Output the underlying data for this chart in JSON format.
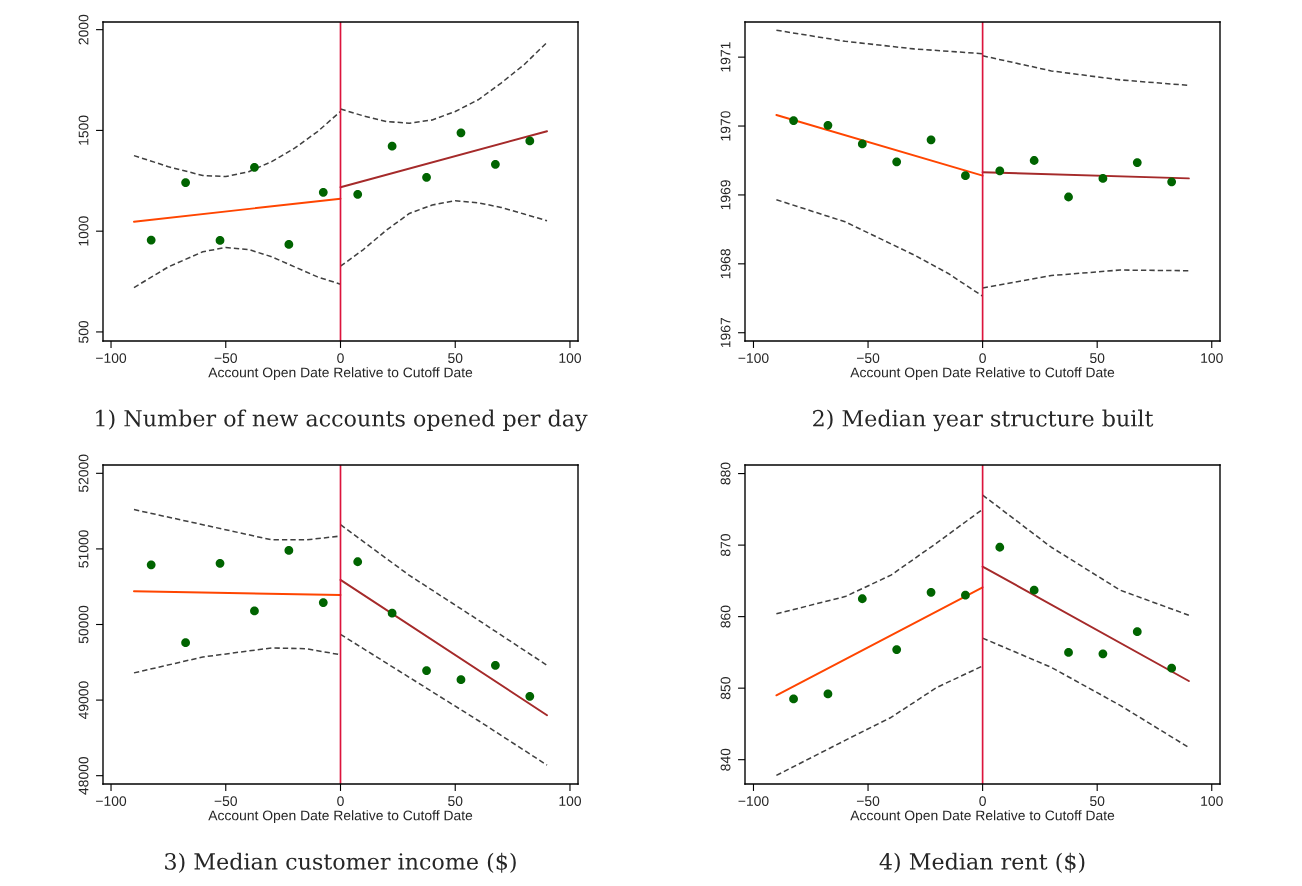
{
  "chart_data": [
    {
      "type": "scatter",
      "title": "1) Number of new accounts opened per day",
      "xlabel": "Account Open Date Relative to Cutoff Date",
      "xlim": [
        -103.5,
        103.5
      ],
      "xticks": [
        -100,
        -50,
        0,
        50,
        100
      ],
      "ylim": [
        455,
        2038
      ],
      "yticks": [
        500,
        1000,
        1500,
        2000
      ],
      "grid": false,
      "legend": false,
      "marker": "circle",
      "ref_lines": [
        {
          "axis": "x",
          "value": 0,
          "color": "#dc143c"
        }
      ],
      "series": [
        {
          "color": "#006400",
          "x": [
            -82.5,
            -67.5,
            -52.5,
            -37.5,
            -22.5,
            -7.5,
            7.5,
            22.5,
            37.5,
            52.5,
            67.5,
            82.5
          ],
          "values": [
            956,
            1241,
            954,
            1317,
            934,
            1193,
            1183,
            1422,
            1267,
            1488,
            1332,
            1448
          ]
        },
        {
          "type": "line",
          "color": "#ff4500",
          "line_style": "solid",
          "marker": "none",
          "x": [
            -90,
            0
          ],
          "values": [
            1047,
            1161
          ]
        },
        {
          "type": "line",
          "color": "#a52a2a",
          "line_style": "solid",
          "marker": "none",
          "x": [
            0,
            90
          ],
          "values": [
            1218,
            1496
          ]
        },
        {
          "type": "line",
          "color": "#404040",
          "line_style": "dashed",
          "marker": "none",
          "x": [
            -90,
            -75,
            -60,
            -50,
            -40,
            -30,
            -20,
            -10,
            0
          ],
          "values": [
            1375,
            1320,
            1276,
            1271,
            1295,
            1345,
            1412,
            1494,
            1594
          ]
        },
        {
          "type": "line",
          "color": "#404040",
          "line_style": "dashed",
          "marker": "none",
          "x": [
            -90,
            -75,
            -60,
            -50,
            -40,
            -30,
            -20,
            -10,
            0
          ],
          "values": [
            720,
            823,
            898,
            919,
            909,
            873,
            823,
            773,
            737
          ]
        },
        {
          "type": "line",
          "color": "#404040",
          "line_style": "dashed",
          "marker": "none",
          "x": [
            0,
            10,
            20,
            30,
            40,
            50,
            60,
            70,
            80,
            90
          ],
          "values": [
            1606,
            1572,
            1544,
            1536,
            1552,
            1594,
            1652,
            1735,
            1826,
            1937
          ]
        },
        {
          "type": "line",
          "color": "#404040",
          "line_style": "dashed",
          "marker": "none",
          "x": [
            0,
            10,
            20,
            30,
            40,
            50,
            60,
            70,
            80,
            90
          ],
          "values": [
            826,
            909,
            1005,
            1088,
            1130,
            1151,
            1141,
            1118,
            1085,
            1052
          ]
        }
      ]
    },
    {
      "type": "scatter",
      "title": "2) Median year structure built",
      "xlabel": "Account Open Date Relative to Cutoff Date",
      "xlim": [
        -103.7,
        103.6
      ],
      "xticks": [
        -100,
        -50,
        0,
        50,
        100
      ],
      "ylim": [
        1966.88,
        1971.51
      ],
      "yticks": [
        1967,
        1968,
        1969,
        1970,
        1971
      ],
      "grid": false,
      "legend": false,
      "marker": "circle",
      "ref_lines": [
        {
          "axis": "x",
          "value": 0,
          "color": "#dc143c"
        }
      ],
      "series": [
        {
          "color": "#006400",
          "x": [
            -82.5,
            -67.5,
            -52.5,
            -37.5,
            -22.5,
            -7.5,
            7.5,
            22.5,
            37.5,
            52.5,
            67.5,
            82.5
          ],
          "values": [
            1970.08,
            1970.01,
            1969.74,
            1969.48,
            1969.8,
            1969.28,
            1969.35,
            1969.5,
            1968.97,
            1969.24,
            1969.47,
            1969.19
          ]
        },
        {
          "type": "line",
          "color": "#ff4500",
          "line_style": "solid",
          "marker": "none",
          "x": [
            -90,
            0
          ],
          "values": [
            1970.16,
            1969.28
          ]
        },
        {
          "type": "line",
          "color": "#a52a2a",
          "line_style": "solid",
          "marker": "none",
          "x": [
            0,
            90
          ],
          "values": [
            1969.33,
            1969.24
          ]
        },
        {
          "type": "line",
          "color": "#404040",
          "line_style": "dashed",
          "marker": "none",
          "x": [
            -90,
            -60,
            -30,
            0
          ],
          "values": [
            1971.39,
            1971.23,
            1971.12,
            1971.05
          ]
        },
        {
          "type": "line",
          "color": "#404040",
          "line_style": "dashed",
          "marker": "none",
          "x": [
            -90,
            -60,
            -30,
            -15,
            0
          ],
          "values": [
            1968.93,
            1968.61,
            1968.13,
            1967.86,
            1967.53
          ]
        },
        {
          "type": "line",
          "color": "#404040",
          "line_style": "dashed",
          "marker": "none",
          "x": [
            0,
            30,
            60,
            90
          ],
          "values": [
            1971.02,
            1970.8,
            1970.67,
            1970.59
          ]
        },
        {
          "type": "line",
          "color": "#404040",
          "line_style": "dashed",
          "marker": "none",
          "x": [
            0,
            30,
            60,
            90
          ],
          "values": [
            1967.65,
            1967.83,
            1967.91,
            1967.9
          ]
        }
      ]
    },
    {
      "type": "scatter",
      "title": "3) Median customer income ($)",
      "xlabel": "Account Open Date Relative to Cutoff Date",
      "xlim": [
        -103.5,
        103.5
      ],
      "xticks": [
        -100,
        -50,
        0,
        50,
        100
      ],
      "ylim": [
        47890,
        52110
      ],
      "yticks": [
        48000,
        49000,
        50000,
        51000,
        52000
      ],
      "grid": false,
      "legend": false,
      "marker": "circle",
      "ref_lines": [
        {
          "axis": "x",
          "value": 0,
          "color": "#dc143c"
        }
      ],
      "series": [
        {
          "color": "#006400",
          "x": [
            -82.5,
            -67.5,
            -52.5,
            -37.5,
            -22.5,
            -7.5,
            7.5,
            22.5,
            37.5,
            52.5,
            67.5,
            82.5
          ],
          "values": [
            50790,
            49760,
            50810,
            50180,
            50980,
            50290,
            50830,
            50150,
            49390,
            49270,
            49460,
            49050
          ]
        },
        {
          "type": "line",
          "color": "#ff4500",
          "line_style": "solid",
          "marker": "none",
          "x": [
            -90,
            0
          ],
          "values": [
            50440,
            50390
          ]
        },
        {
          "type": "line",
          "color": "#a52a2a",
          "line_style": "solid",
          "marker": "none",
          "x": [
            0,
            90
          ],
          "values": [
            50590,
            48800
          ]
        },
        {
          "type": "line",
          "color": "#404040",
          "line_style": "dashed",
          "marker": "none",
          "x": [
            -90,
            -60,
            -30,
            -15,
            0
          ],
          "values": [
            51520,
            51320,
            51120,
            51120,
            51170
          ]
        },
        {
          "type": "line",
          "color": "#404040",
          "line_style": "dashed",
          "marker": "none",
          "x": [
            -90,
            -60,
            -30,
            -15,
            0
          ],
          "values": [
            49360,
            49570,
            49690,
            49680,
            49600
          ]
        },
        {
          "type": "line",
          "color": "#404040",
          "line_style": "dashed",
          "marker": "none",
          "x": [
            0,
            30,
            60,
            90
          ],
          "values": [
            51320,
            50650,
            50060,
            49460
          ]
        },
        {
          "type": "line",
          "color": "#404040",
          "line_style": "dashed",
          "marker": "none",
          "x": [
            0,
            30,
            60,
            90
          ],
          "values": [
            49870,
            49300,
            48730,
            48140
          ]
        }
      ]
    },
    {
      "type": "scatter",
      "title": "4) Median rent ($)",
      "xlabel": "Account Open Date Relative to Cutoff Date",
      "xlim": [
        -103.7,
        103.6
      ],
      "xticks": [
        -100,
        -50,
        0,
        50,
        100
      ],
      "ylim": [
        836.6,
        881.2
      ],
      "yticks": [
        840,
        850,
        860,
        870,
        880
      ],
      "grid": false,
      "legend": false,
      "marker": "circle",
      "ref_lines": [
        {
          "axis": "x",
          "value": 0,
          "color": "#dc143c"
        }
      ],
      "series": [
        {
          "color": "#006400",
          "x": [
            -82.5,
            -67.5,
            -52.5,
            -37.5,
            -22.5,
            -7.5,
            7.5,
            22.5,
            37.5,
            52.5,
            67.5,
            82.5
          ],
          "values": [
            848.5,
            849.2,
            862.5,
            855.4,
            863.4,
            863.0,
            869.7,
            863.7,
            855.0,
            854.8,
            857.9,
            852.8
          ]
        },
        {
          "type": "line",
          "color": "#ff4500",
          "line_style": "solid",
          "marker": "none",
          "x": [
            -90,
            0
          ],
          "values": [
            849.0,
            864.1
          ]
        },
        {
          "type": "line",
          "color": "#a52a2a",
          "line_style": "solid",
          "marker": "none",
          "x": [
            0,
            90
          ],
          "values": [
            867.0,
            851.0
          ]
        },
        {
          "type": "line",
          "color": "#404040",
          "line_style": "dashed",
          "marker": "none",
          "x": [
            -90,
            -60,
            -40,
            -20,
            0
          ],
          "values": [
            860.4,
            862.8,
            865.8,
            870.3,
            875.0
          ]
        },
        {
          "type": "line",
          "color": "#404040",
          "line_style": "dashed",
          "marker": "none",
          "x": [
            -90,
            -60,
            -40,
            -20,
            0
          ],
          "values": [
            837.8,
            842.7,
            845.9,
            850.1,
            853.1
          ]
        },
        {
          "type": "line",
          "color": "#404040",
          "line_style": "dashed",
          "marker": "none",
          "x": [
            0,
            30,
            60,
            90
          ],
          "values": [
            877.0,
            869.7,
            863.7,
            860.2
          ]
        },
        {
          "type": "line",
          "color": "#404040",
          "line_style": "dashed",
          "marker": "none",
          "x": [
            0,
            30,
            60,
            90
          ],
          "values": [
            857.0,
            852.9,
            847.6,
            841.7
          ]
        }
      ]
    }
  ]
}
